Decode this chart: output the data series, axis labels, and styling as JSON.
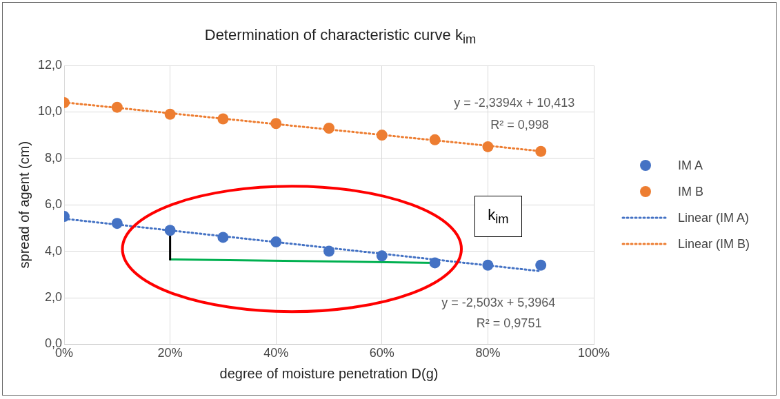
{
  "chart_data": {
    "type": "scatter",
    "title": "Determination of characteristic curve k$_{im}$",
    "xlabel": "degree of moisture penetration D(g)",
    "ylabel": "spread of agent (cm)",
    "x": [
      0,
      0.1,
      0.2,
      0.3,
      0.4,
      0.5,
      0.6,
      0.7,
      0.8,
      0.9
    ],
    "series": [
      {
        "name": "IM A",
        "color": "#4472c4",
        "values": [
          5.5,
          5.2,
          4.9,
          4.6,
          4.4,
          4.0,
          3.8,
          3.5,
          3.4,
          3.4
        ]
      },
      {
        "name": "IM B",
        "color": "#ed7d31",
        "values": [
          10.4,
          10.2,
          9.9,
          9.7,
          9.5,
          9.3,
          9.0,
          8.8,
          8.5,
          8.3
        ]
      },
      {
        "name": "Linear (IM A)",
        "type": "line",
        "color": "#4472c4",
        "x": [
          0,
          0.9
        ],
        "values": [
          5.4,
          3.14
        ],
        "line_style": "dotted",
        "marker": "none"
      },
      {
        "name": "Linear (IM B)",
        "type": "line",
        "color": "#ed7d31",
        "x": [
          0,
          0.9
        ],
        "values": [
          10.41,
          8.31
        ],
        "line_style": "dotted",
        "marker": "none"
      },
      {
        "type": "line",
        "color": "#000000",
        "x": [
          0.2,
          0.2
        ],
        "values": [
          4.9,
          3.65
        ],
        "line_style": "solid",
        "marker": "none"
      },
      {
        "type": "line",
        "color": "#00b050",
        "x": [
          0.2,
          0.7
        ],
        "values": [
          3.65,
          3.5
        ],
        "line_style": "solid",
        "marker": "none"
      }
    ],
    "marker": "circle",
    "xlim": [
      0,
      1
    ],
    "xticks": [
      {
        "value": 0,
        "label": "0%"
      },
      {
        "value": 0.2,
        "label": "20%"
      },
      {
        "value": 0.4,
        "label": "40%"
      },
      {
        "value": 0.6,
        "label": "60%"
      },
      {
        "value": 0.8,
        "label": "80%"
      },
      {
        "value": 1,
        "label": "100%"
      }
    ],
    "ylim": [
      0,
      12
    ],
    "yticks": [
      {
        "value": 0,
        "label": "0,0"
      },
      {
        "value": 2,
        "label": "2,0"
      },
      {
        "value": 4,
        "label": "4,0"
      },
      {
        "value": 6,
        "label": "6,0"
      },
      {
        "value": 8,
        "label": "8,0"
      },
      {
        "value": 10,
        "label": "10,0"
      },
      {
        "value": 12,
        "label": "12,0"
      }
    ],
    "grid": true,
    "legend": "right",
    "annotations": [
      "y = -2,3394x + 10,413",
      "R² = 0,998",
      "y = -2,503x + 5,3964",
      "R² = 0,9751",
      "k$_{im}$"
    ]
  }
}
